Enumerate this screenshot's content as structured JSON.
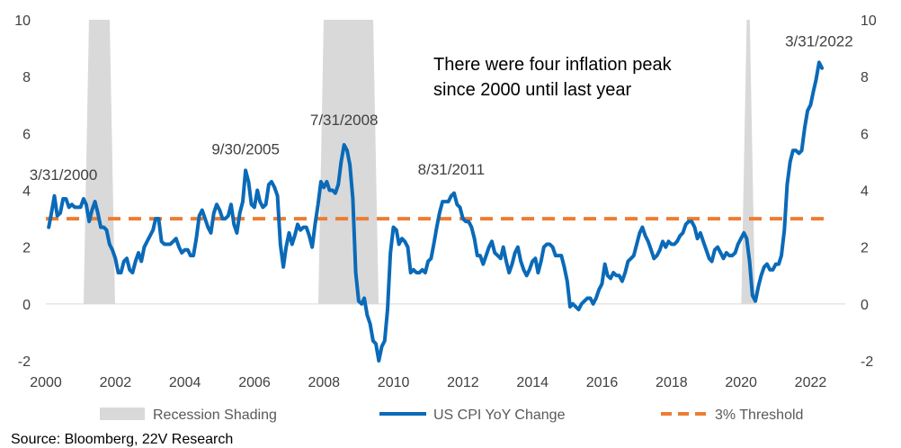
{
  "chart_data": {
    "type": "line",
    "x_range": [
      "2000-01-01",
      "2022-12-31"
    ],
    "ylim": [
      -2,
      10
    ],
    "y_ticks": [
      -2,
      0,
      2,
      4,
      6,
      8,
      10
    ],
    "x_ticks": [
      "2000",
      "2002",
      "2004",
      "2006",
      "2008",
      "2010",
      "2012",
      "2014",
      "2016",
      "2018",
      "2020",
      "2022"
    ],
    "grid": false,
    "legend_position": "bottom",
    "colors": {
      "cpi": "#0a6ab8",
      "threshold": "#ed7d31",
      "recession": "#d9d9d9"
    },
    "recessions": [
      {
        "start": "2001-03-01",
        "end": "2001-11-30"
      },
      {
        "start": "2007-12-01",
        "end": "2009-06-30"
      },
      {
        "start": "2020-02-01",
        "end": "2020-04-30"
      }
    ],
    "threshold": {
      "name": "3% Threshold",
      "value": 3
    },
    "series": [
      {
        "name": "US CPI YoY Change",
        "points": [
          [
            "2000-01-31",
            2.7
          ],
          [
            "2000-02-29",
            3.2
          ],
          [
            "2000-03-31",
            3.8
          ],
          [
            "2000-04-30",
            3.1
          ],
          [
            "2000-05-31",
            3.2
          ],
          [
            "2000-06-30",
            3.7
          ],
          [
            "2000-07-31",
            3.7
          ],
          [
            "2000-08-31",
            3.4
          ],
          [
            "2000-09-30",
            3.5
          ],
          [
            "2000-10-31",
            3.4
          ],
          [
            "2000-11-30",
            3.4
          ],
          [
            "2000-12-31",
            3.4
          ],
          [
            "2001-01-31",
            3.7
          ],
          [
            "2001-02-28",
            3.5
          ],
          [
            "2001-03-31",
            2.9
          ],
          [
            "2001-04-30",
            3.3
          ],
          [
            "2001-05-31",
            3.6
          ],
          [
            "2001-06-30",
            3.2
          ],
          [
            "2001-07-31",
            2.7
          ],
          [
            "2001-08-31",
            2.7
          ],
          [
            "2001-09-30",
            2.6
          ],
          [
            "2001-10-31",
            2.1
          ],
          [
            "2001-11-30",
            1.9
          ],
          [
            "2001-12-31",
            1.6
          ],
          [
            "2002-01-31",
            1.1
          ],
          [
            "2002-02-28",
            1.1
          ],
          [
            "2002-03-31",
            1.5
          ],
          [
            "2002-04-30",
            1.6
          ],
          [
            "2002-05-31",
            1.2
          ],
          [
            "2002-06-30",
            1.1
          ],
          [
            "2002-07-31",
            1.5
          ],
          [
            "2002-08-31",
            1.8
          ],
          [
            "2002-09-30",
            1.5
          ],
          [
            "2002-10-31",
            2.0
          ],
          [
            "2002-11-30",
            2.2
          ],
          [
            "2002-12-31",
            2.4
          ],
          [
            "2003-01-31",
            2.6
          ],
          [
            "2003-02-28",
            3.0
          ],
          [
            "2003-03-31",
            3.0
          ],
          [
            "2003-04-30",
            2.2
          ],
          [
            "2003-05-31",
            2.1
          ],
          [
            "2003-06-30",
            2.1
          ],
          [
            "2003-07-31",
            2.1
          ],
          [
            "2003-08-31",
            2.2
          ],
          [
            "2003-09-30",
            2.3
          ],
          [
            "2003-10-31",
            2.0
          ],
          [
            "2003-11-30",
            1.8
          ],
          [
            "2003-12-31",
            1.9
          ],
          [
            "2004-01-31",
            1.9
          ],
          [
            "2004-02-29",
            1.7
          ],
          [
            "2004-03-31",
            1.7
          ],
          [
            "2004-04-30",
            2.3
          ],
          [
            "2004-05-31",
            3.1
          ],
          [
            "2004-06-30",
            3.3
          ],
          [
            "2004-07-31",
            3.0
          ],
          [
            "2004-08-31",
            2.7
          ],
          [
            "2004-09-30",
            2.5
          ],
          [
            "2004-10-31",
            3.2
          ],
          [
            "2004-11-30",
            3.5
          ],
          [
            "2004-12-31",
            3.3
          ],
          [
            "2005-01-31",
            3.0
          ],
          [
            "2005-02-28",
            3.0
          ],
          [
            "2005-03-31",
            3.1
          ],
          [
            "2005-04-30",
            3.5
          ],
          [
            "2005-05-31",
            2.8
          ],
          [
            "2005-06-30",
            2.5
          ],
          [
            "2005-07-31",
            3.2
          ],
          [
            "2005-08-31",
            3.6
          ],
          [
            "2005-09-30",
            4.7
          ],
          [
            "2005-10-31",
            4.3
          ],
          [
            "2005-11-30",
            3.5
          ],
          [
            "2005-12-31",
            3.4
          ],
          [
            "2006-01-31",
            4.0
          ],
          [
            "2006-02-28",
            3.6
          ],
          [
            "2006-03-31",
            3.4
          ],
          [
            "2006-04-30",
            3.5
          ],
          [
            "2006-05-31",
            4.2
          ],
          [
            "2006-06-30",
            4.3
          ],
          [
            "2006-07-31",
            4.1
          ],
          [
            "2006-08-31",
            3.8
          ],
          [
            "2006-09-30",
            2.1
          ],
          [
            "2006-10-31",
            1.3
          ],
          [
            "2006-11-30",
            2.0
          ],
          [
            "2006-12-31",
            2.5
          ],
          [
            "2007-01-31",
            2.1
          ],
          [
            "2007-02-28",
            2.4
          ],
          [
            "2007-03-31",
            2.8
          ],
          [
            "2007-04-30",
            2.6
          ],
          [
            "2007-05-31",
            2.7
          ],
          [
            "2007-06-30",
            2.7
          ],
          [
            "2007-07-31",
            2.4
          ],
          [
            "2007-08-31",
            2.0
          ],
          [
            "2007-09-30",
            2.8
          ],
          [
            "2007-10-31",
            3.5
          ],
          [
            "2007-11-30",
            4.3
          ],
          [
            "2007-12-31",
            4.1
          ],
          [
            "2008-01-31",
            4.3
          ],
          [
            "2008-02-29",
            4.0
          ],
          [
            "2008-03-31",
            4.0
          ],
          [
            "2008-04-30",
            3.9
          ],
          [
            "2008-05-31",
            4.2
          ],
          [
            "2008-06-30",
            5.0
          ],
          [
            "2008-07-31",
            5.6
          ],
          [
            "2008-08-31",
            5.4
          ],
          [
            "2008-09-30",
            4.9
          ],
          [
            "2008-10-31",
            3.7
          ],
          [
            "2008-11-30",
            1.1
          ],
          [
            "2008-12-31",
            0.1
          ],
          [
            "2009-01-31",
            0.0
          ],
          [
            "2009-02-28",
            0.2
          ],
          [
            "2009-03-31",
            -0.4
          ],
          [
            "2009-04-30",
            -0.7
          ],
          [
            "2009-05-31",
            -1.3
          ],
          [
            "2009-06-30",
            -1.4
          ],
          [
            "2009-07-31",
            -2.0
          ],
          [
            "2009-08-31",
            -1.5
          ],
          [
            "2009-09-30",
            -1.3
          ],
          [
            "2009-10-31",
            -0.2
          ],
          [
            "2009-11-30",
            1.8
          ],
          [
            "2009-12-31",
            2.7
          ],
          [
            "2010-01-31",
            2.6
          ],
          [
            "2010-02-28",
            2.1
          ],
          [
            "2010-03-31",
            2.3
          ],
          [
            "2010-04-30",
            2.2
          ],
          [
            "2010-05-31",
            2.0
          ],
          [
            "2010-06-30",
            1.1
          ],
          [
            "2010-07-31",
            1.2
          ],
          [
            "2010-08-31",
            1.1
          ],
          [
            "2010-09-30",
            1.1
          ],
          [
            "2010-10-31",
            1.2
          ],
          [
            "2010-11-30",
            1.1
          ],
          [
            "2010-12-31",
            1.5
          ],
          [
            "2011-01-31",
            1.6
          ],
          [
            "2011-02-28",
            2.1
          ],
          [
            "2011-03-31",
            2.7
          ],
          [
            "2011-04-30",
            3.2
          ],
          [
            "2011-05-31",
            3.6
          ],
          [
            "2011-06-30",
            3.6
          ],
          [
            "2011-07-31",
            3.6
          ],
          [
            "2011-08-31",
            3.8
          ],
          [
            "2011-09-30",
            3.9
          ],
          [
            "2011-10-31",
            3.5
          ],
          [
            "2011-11-30",
            3.4
          ],
          [
            "2011-12-31",
            3.0
          ],
          [
            "2012-01-31",
            2.9
          ],
          [
            "2012-02-29",
            2.9
          ],
          [
            "2012-03-31",
            2.7
          ],
          [
            "2012-04-30",
            2.3
          ],
          [
            "2012-05-31",
            1.7
          ],
          [
            "2012-06-30",
            1.7
          ],
          [
            "2012-07-31",
            1.4
          ],
          [
            "2012-08-31",
            1.7
          ],
          [
            "2012-09-30",
            2.0
          ],
          [
            "2012-10-31",
            2.2
          ],
          [
            "2012-11-30",
            1.8
          ],
          [
            "2012-12-31",
            1.7
          ],
          [
            "2013-01-31",
            1.6
          ],
          [
            "2013-02-28",
            2.0
          ],
          [
            "2013-03-31",
            1.5
          ],
          [
            "2013-04-30",
            1.1
          ],
          [
            "2013-05-31",
            1.4
          ],
          [
            "2013-06-30",
            1.8
          ],
          [
            "2013-07-31",
            2.0
          ],
          [
            "2013-08-31",
            1.5
          ],
          [
            "2013-09-30",
            1.2
          ],
          [
            "2013-10-31",
            1.0
          ],
          [
            "2013-11-30",
            1.2
          ],
          [
            "2013-12-31",
            1.5
          ],
          [
            "2014-01-31",
            1.6
          ],
          [
            "2014-02-28",
            1.1
          ],
          [
            "2014-03-31",
            1.5
          ],
          [
            "2014-04-30",
            2.0
          ],
          [
            "2014-05-31",
            2.1
          ],
          [
            "2014-06-30",
            2.1
          ],
          [
            "2014-07-31",
            2.0
          ],
          [
            "2014-08-31",
            1.7
          ],
          [
            "2014-09-30",
            1.7
          ],
          [
            "2014-10-31",
            1.7
          ],
          [
            "2014-11-30",
            1.3
          ],
          [
            "2014-12-31",
            0.8
          ],
          [
            "2015-01-31",
            -0.1
          ],
          [
            "2015-02-28",
            0.0
          ],
          [
            "2015-03-31",
            -0.1
          ],
          [
            "2015-04-30",
            -0.2
          ],
          [
            "2015-05-31",
            0.0
          ],
          [
            "2015-06-30",
            0.1
          ],
          [
            "2015-07-31",
            0.2
          ],
          [
            "2015-08-31",
            0.2
          ],
          [
            "2015-09-30",
            0.0
          ],
          [
            "2015-10-31",
            0.2
          ],
          [
            "2015-11-30",
            0.5
          ],
          [
            "2015-12-31",
            0.7
          ],
          [
            "2016-01-31",
            1.4
          ],
          [
            "2016-02-29",
            1.0
          ],
          [
            "2016-03-31",
            0.9
          ],
          [
            "2016-04-30",
            1.1
          ],
          [
            "2016-05-31",
            1.0
          ],
          [
            "2016-06-30",
            1.0
          ],
          [
            "2016-07-31",
            0.8
          ],
          [
            "2016-08-31",
            1.1
          ],
          [
            "2016-09-30",
            1.5
          ],
          [
            "2016-10-31",
            1.6
          ],
          [
            "2016-11-30",
            1.7
          ],
          [
            "2016-12-31",
            2.1
          ],
          [
            "2017-01-31",
            2.5
          ],
          [
            "2017-02-28",
            2.7
          ],
          [
            "2017-03-31",
            2.4
          ],
          [
            "2017-04-30",
            2.2
          ],
          [
            "2017-05-31",
            1.9
          ],
          [
            "2017-06-30",
            1.6
          ],
          [
            "2017-07-31",
            1.7
          ],
          [
            "2017-08-31",
            1.9
          ],
          [
            "2017-09-30",
            2.2
          ],
          [
            "2017-10-31",
            2.0
          ],
          [
            "2017-11-30",
            2.2
          ],
          [
            "2017-12-31",
            2.1
          ],
          [
            "2018-01-31",
            2.1
          ],
          [
            "2018-02-28",
            2.2
          ],
          [
            "2018-03-31",
            2.4
          ],
          [
            "2018-04-30",
            2.5
          ],
          [
            "2018-05-31",
            2.8
          ],
          [
            "2018-06-30",
            2.9
          ],
          [
            "2018-07-31",
            2.9
          ],
          [
            "2018-08-31",
            2.7
          ],
          [
            "2018-09-30",
            2.3
          ],
          [
            "2018-10-31",
            2.5
          ],
          [
            "2018-11-30",
            2.2
          ],
          [
            "2018-12-31",
            1.9
          ],
          [
            "2019-01-31",
            1.6
          ],
          [
            "2019-02-28",
            1.5
          ],
          [
            "2019-03-31",
            1.9
          ],
          [
            "2019-04-30",
            2.0
          ],
          [
            "2019-05-31",
            1.8
          ],
          [
            "2019-06-30",
            1.6
          ],
          [
            "2019-07-31",
            1.8
          ],
          [
            "2019-08-31",
            1.7
          ],
          [
            "2019-09-30",
            1.7
          ],
          [
            "2019-10-31",
            1.8
          ],
          [
            "2019-11-30",
            2.1
          ],
          [
            "2019-12-31",
            2.3
          ],
          [
            "2020-01-31",
            2.5
          ],
          [
            "2020-02-29",
            2.3
          ],
          [
            "2020-03-31",
            1.5
          ],
          [
            "2020-04-30",
            0.3
          ],
          [
            "2020-05-31",
            0.1
          ],
          [
            "2020-06-30",
            0.6
          ],
          [
            "2020-07-31",
            1.0
          ],
          [
            "2020-08-31",
            1.3
          ],
          [
            "2020-09-30",
            1.4
          ],
          [
            "2020-10-31",
            1.2
          ],
          [
            "2020-11-30",
            1.2
          ],
          [
            "2020-12-31",
            1.4
          ],
          [
            "2021-01-31",
            1.4
          ],
          [
            "2021-02-28",
            1.7
          ],
          [
            "2021-03-31",
            2.6
          ],
          [
            "2021-04-30",
            4.2
          ],
          [
            "2021-05-31",
            5.0
          ],
          [
            "2021-06-30",
            5.4
          ],
          [
            "2021-07-31",
            5.4
          ],
          [
            "2021-08-31",
            5.3
          ],
          [
            "2021-09-30",
            5.4
          ],
          [
            "2021-10-31",
            6.2
          ],
          [
            "2021-11-30",
            6.8
          ],
          [
            "2021-12-31",
            7.0
          ],
          [
            "2022-01-31",
            7.5
          ],
          [
            "2022-02-28",
            7.9
          ],
          [
            "2022-03-31",
            8.5
          ],
          [
            "2022-04-30",
            8.3
          ]
        ]
      }
    ],
    "annotations": [
      {
        "text": "3/31/2000",
        "anchor": "2000-03-31"
      },
      {
        "text": "9/30/2005",
        "anchor": "2005-09-30"
      },
      {
        "text": "7/31/2008",
        "anchor": "2008-07-31"
      },
      {
        "text": "8/31/2011",
        "anchor": "2011-08-31"
      },
      {
        "text": "3/31/2022",
        "anchor": "2022-03-31"
      }
    ],
    "note_lines": [
      "There were four inflation peak",
      "since 2000 until last year"
    ],
    "legend": [
      {
        "key": "recession",
        "label": "Recession Shading"
      },
      {
        "key": "cpi",
        "label": "US CPI YoY Change"
      },
      {
        "key": "threshold",
        "label": "3% Threshold"
      }
    ],
    "source": "Source: Bloomberg, 22V Research"
  }
}
